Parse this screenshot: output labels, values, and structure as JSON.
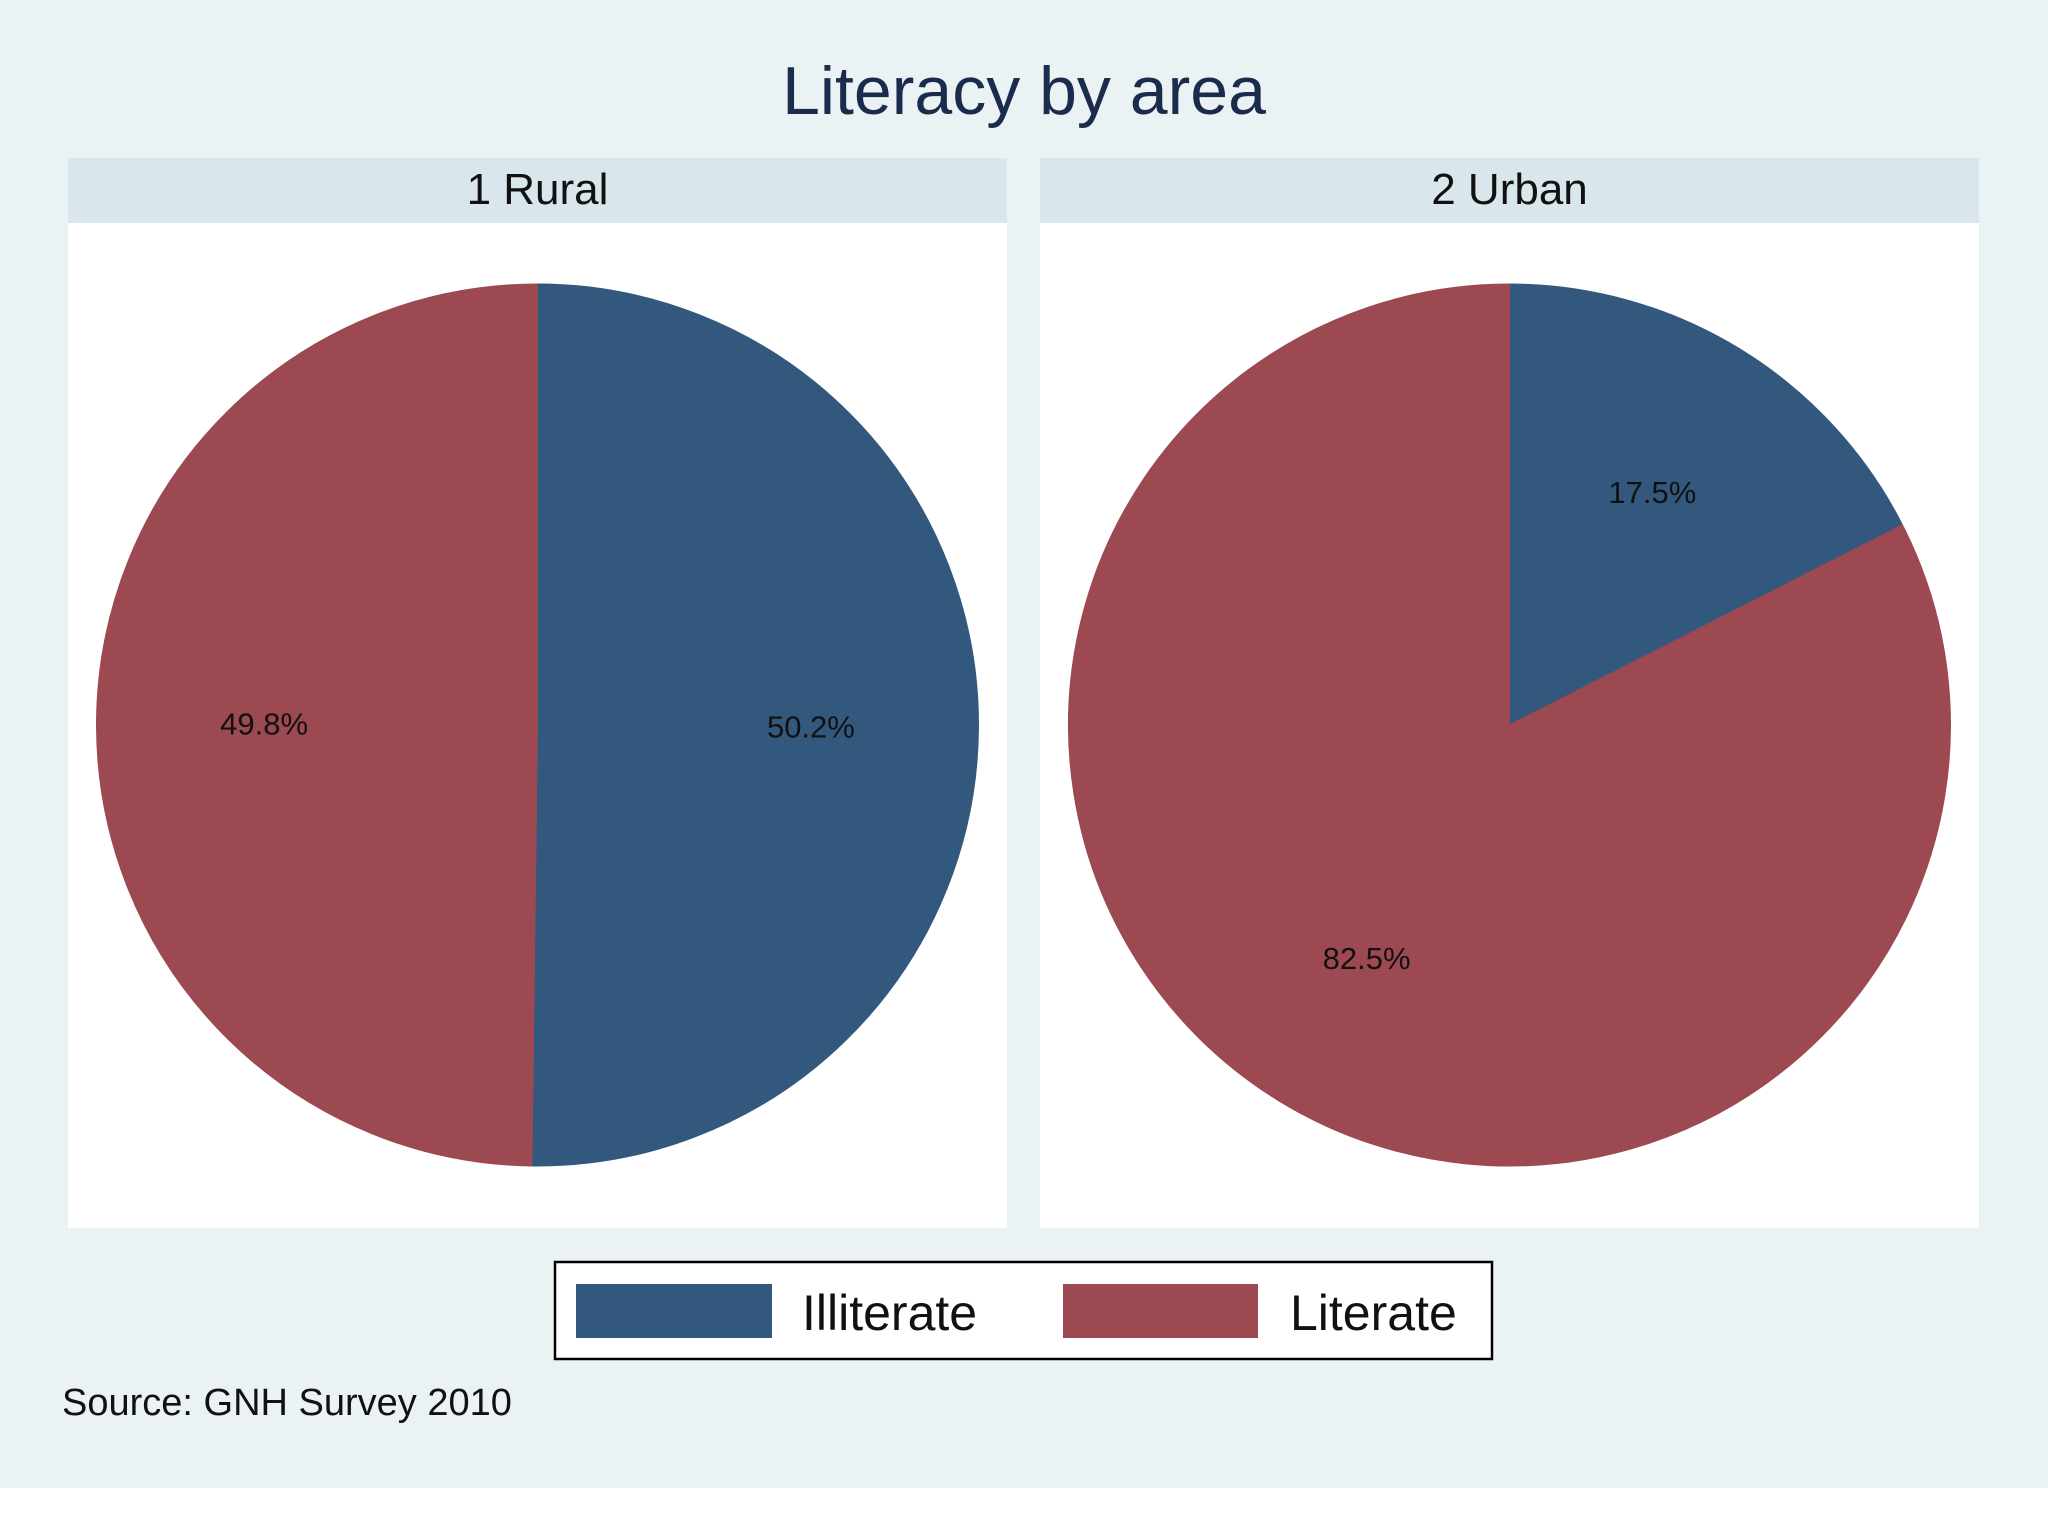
{
  "colors": {
    "background": "#eaf2f3",
    "panel_header": "#d9e6eb",
    "panel_body": "#ffffff",
    "title_text": "#1a2b4c",
    "illiterate": "#33587d",
    "literate": "#9c4951",
    "label_text": "#111111"
  },
  "chart_data": {
    "type": "pie",
    "title": "Literacy by area",
    "source": "Source: GNH Survey 2010",
    "legend_position": "bottom",
    "categories": [
      "Illiterate",
      "Literate"
    ],
    "panels": [
      {
        "name": "1 Rural",
        "values": [
          50.2,
          49.8
        ],
        "labels": [
          "50.2%",
          "49.8%"
        ]
      },
      {
        "name": "2 Urban",
        "values": [
          17.5,
          82.5
        ],
        "labels": [
          "17.5%",
          "82.5%"
        ]
      }
    ]
  }
}
